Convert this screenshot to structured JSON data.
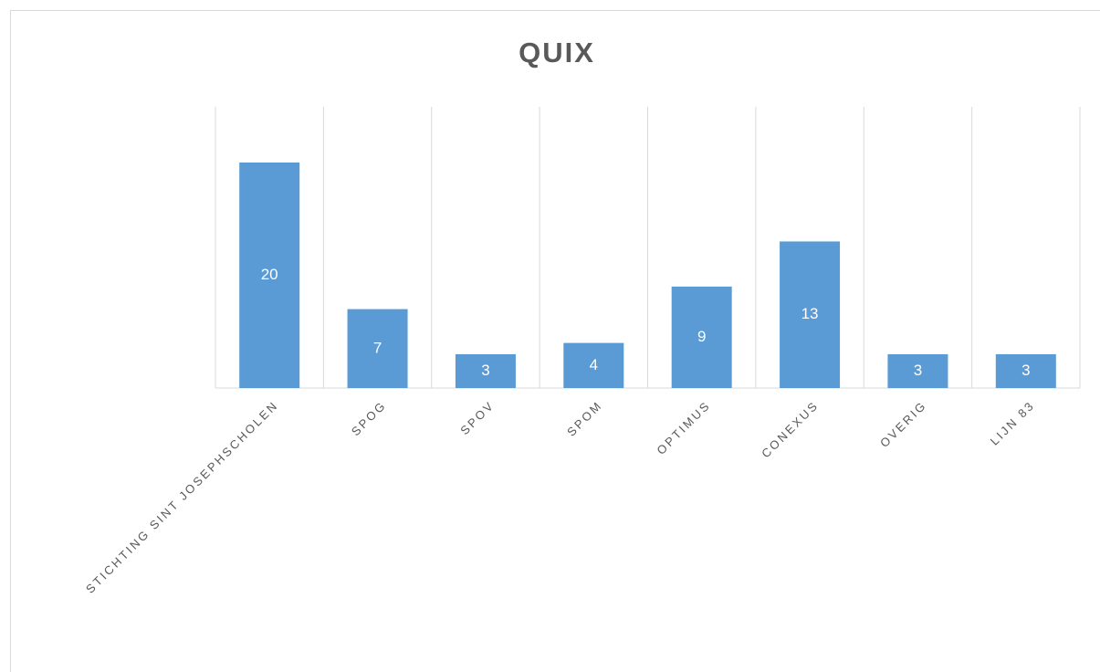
{
  "chart_data": {
    "type": "bar",
    "title": "QUIX",
    "categories": [
      "STICHTING SINT JOSEPHSCHOLEN",
      "SPOG",
      "SPOV",
      "SPOM",
      "OPTIMUS",
      "CONEXUS",
      "OVERIG",
      "LIJN 83"
    ],
    "values": [
      20,
      7,
      3,
      4,
      9,
      13,
      3,
      3
    ],
    "color": "#5b9bd5"
  }
}
